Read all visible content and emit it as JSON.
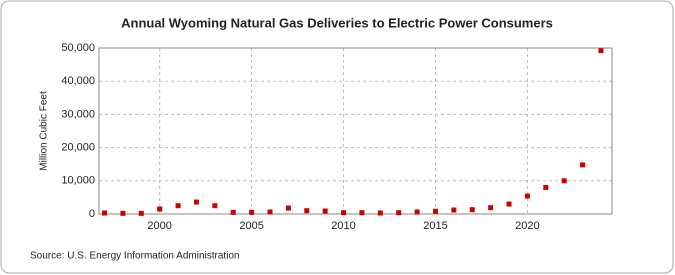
{
  "chart_data": {
    "type": "scatter",
    "title": "Annual Wyoming Natural Gas Deliveries to Electric Power Consumers",
    "y_label": "Million Cubic Feet",
    "source": "Source: U.S. Energy Information Administration",
    "x": [
      1997,
      1998,
      1999,
      2000,
      2001,
      2002,
      2003,
      2004,
      2005,
      2006,
      2007,
      2008,
      2009,
      2010,
      2011,
      2012,
      2013,
      2014,
      2015,
      2016,
      2017,
      2018,
      2019,
      2020,
      2021,
      2022,
      2023,
      2024
    ],
    "series": [
      {
        "name": "Wyoming",
        "color": "#cc0000",
        "values": [
          300,
          200,
          200,
          1500,
          2500,
          3600,
          2500,
          500,
          500,
          600,
          1800,
          1000,
          900,
          400,
          400,
          300,
          400,
          600,
          800,
          1200,
          1300,
          1900,
          3000,
          5400,
          8000,
          10000,
          14800,
          49200
        ]
      }
    ],
    "xlim": [
      1996.7,
      2024.6
    ],
    "xticks": [
      2000,
      2005,
      2010,
      2015,
      2020
    ],
    "ylim": [
      0,
      50000
    ],
    "yticks": [
      0,
      {
        "value": 10000,
        "label": "10,000"
      },
      {
        "value": 20000,
        "label": "20,000"
      },
      {
        "value": 30000,
        "label": "30,000"
      },
      {
        "value": 40000,
        "label": "40,000"
      },
      {
        "value": 50000,
        "label": "50,000"
      }
    ],
    "grid": true
  }
}
